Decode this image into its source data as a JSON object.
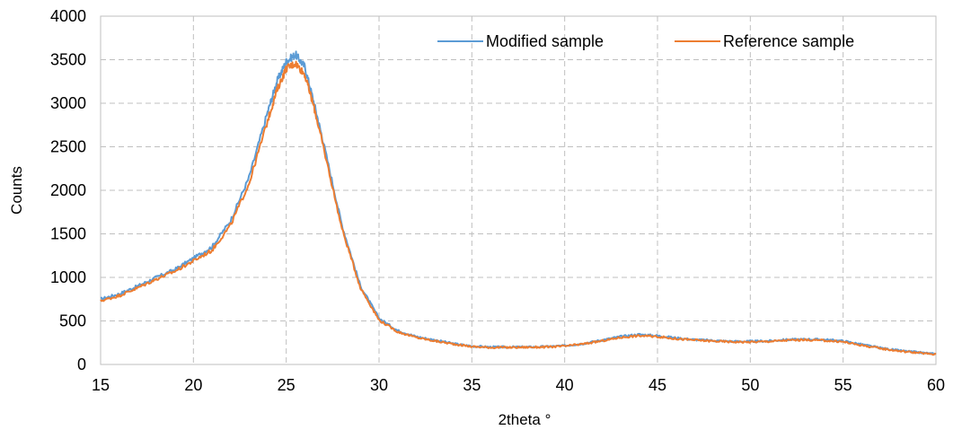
{
  "chart_data": {
    "type": "line",
    "title": "",
    "xlabel": "2theta °",
    "ylabel": "Counts",
    "xlim": [
      15,
      60
    ],
    "ylim": [
      0,
      4000
    ],
    "xticks": [
      15,
      20,
      25,
      30,
      35,
      40,
      45,
      50,
      55,
      60
    ],
    "yticks": [
      0,
      500,
      1000,
      1500,
      2000,
      2500,
      3000,
      3500,
      4000
    ],
    "grid": true,
    "legend_position": "top-right",
    "series": [
      {
        "name": "Modified sample",
        "color": "#5b9bd5",
        "x": [
          15,
          16,
          17,
          18,
          19,
          20,
          21,
          22,
          23,
          24,
          24.5,
          25,
          25.5,
          26,
          26.5,
          27,
          28,
          29,
          30,
          31,
          32,
          33,
          34,
          35,
          36,
          37,
          38,
          39,
          40,
          41,
          42,
          43,
          44,
          45,
          46,
          47,
          48,
          49,
          50,
          51,
          52,
          53,
          54,
          55,
          56,
          57,
          58,
          59,
          60
        ],
        "values": [
          750,
          810,
          900,
          1000,
          1090,
          1220,
          1350,
          1650,
          2150,
          2900,
          3250,
          3480,
          3560,
          3420,
          3000,
          2550,
          1600,
          900,
          530,
          390,
          320,
          280,
          240,
          210,
          200,
          200,
          200,
          205,
          215,
          240,
          280,
          320,
          345,
          330,
          305,
          285,
          275,
          265,
          265,
          270,
          285,
          290,
          285,
          270,
          230,
          190,
          160,
          140,
          120
        ]
      },
      {
        "name": "Reference sample",
        "color": "#ed7d31",
        "x": [
          15,
          16,
          17,
          18,
          19,
          20,
          21,
          22,
          23,
          24,
          24.5,
          25,
          25.5,
          26,
          26.5,
          27,
          28,
          29,
          30,
          31,
          32,
          33,
          34,
          35,
          36,
          37,
          38,
          39,
          40,
          41,
          42,
          43,
          44,
          45,
          46,
          47,
          48,
          49,
          50,
          51,
          52,
          53,
          54,
          55,
          56,
          57,
          58,
          59,
          60
        ],
        "values": [
          730,
          790,
          880,
          980,
          1070,
          1190,
          1310,
          1600,
          2080,
          2800,
          3150,
          3400,
          3460,
          3330,
          2950,
          2500,
          1560,
          880,
          510,
          375,
          310,
          270,
          235,
          205,
          195,
          195,
          198,
          200,
          210,
          235,
          270,
          310,
          330,
          320,
          295,
          280,
          268,
          260,
          258,
          265,
          278,
          282,
          275,
          260,
          220,
          185,
          155,
          135,
          115
        ]
      }
    ]
  }
}
